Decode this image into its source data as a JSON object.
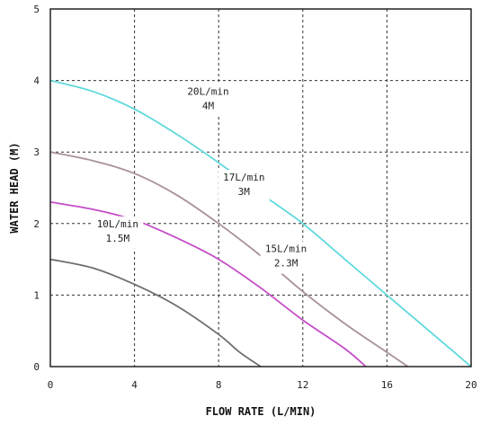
{
  "chart_data": {
    "type": "line",
    "title": "",
    "xlabel": "FLOW RATE (L/MIN)",
    "ylabel": "WATER HEAD (M)",
    "xlim": [
      0,
      20
    ],
    "ylim": [
      0,
      5
    ],
    "xticks": [
      "0",
      "4",
      "8",
      "12",
      "16",
      "20"
    ],
    "yticks": [
      "0",
      "1",
      "2",
      "3",
      "4",
      "5"
    ],
    "grid": true,
    "series": [
      {
        "color": "#5fd9dc",
        "x": [
          0,
          2,
          4,
          6,
          8,
          10,
          12,
          14,
          16,
          18,
          20
        ],
        "y": [
          4.0,
          3.85,
          3.6,
          3.25,
          2.85,
          2.42,
          2.0,
          1.5,
          1.0,
          0.5,
          0.0
        ]
      },
      {
        "color": "#a89296",
        "x": [
          0,
          2,
          4,
          6,
          8,
          10,
          12,
          14,
          16,
          17
        ],
        "y": [
          3.0,
          2.88,
          2.7,
          2.4,
          2.0,
          1.55,
          1.05,
          0.6,
          0.2,
          0.0
        ]
      },
      {
        "color": "#c44dc8",
        "x": [
          0,
          2,
          4,
          6,
          8,
          10,
          12,
          14,
          15
        ],
        "y": [
          2.3,
          2.2,
          2.05,
          1.8,
          1.5,
          1.1,
          0.65,
          0.25,
          0.0
        ]
      },
      {
        "color": "#6e6e6e",
        "x": [
          0,
          2,
          4,
          6,
          8,
          9,
          10
        ],
        "y": [
          1.5,
          1.38,
          1.15,
          0.85,
          0.45,
          0.2,
          0.0
        ]
      }
    ],
    "annotations": [
      {
        "lines": [
          "20L/min",
          "4M"
        ],
        "x": 7.5,
        "y": 3.8
      },
      {
        "lines": [
          "17L/min",
          "3M"
        ],
        "x": 9.2,
        "y": 2.6
      },
      {
        "lines": [
          "15L/min",
          "2.3M"
        ],
        "x": 11.2,
        "y": 1.6
      },
      {
        "lines": [
          "10L/min",
          "1.5M"
        ],
        "x": 3.2,
        "y": 1.95
      }
    ]
  }
}
